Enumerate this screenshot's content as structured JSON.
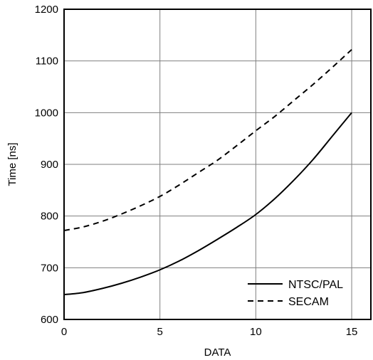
{
  "chart_data": {
    "type": "line",
    "xlabel": "DATA",
    "ylabel": "Time [ns]",
    "xlim": [
      0,
      16
    ],
    "ylim": [
      600,
      1200
    ],
    "xticks": [
      0,
      5,
      10,
      15
    ],
    "yticks": [
      600,
      700,
      800,
      900,
      1000,
      1100,
      1200
    ],
    "grid": true,
    "legend_position": "bottom-right",
    "x": [
      0,
      1,
      2,
      3,
      4,
      5,
      6,
      7,
      8,
      9,
      10,
      11,
      12,
      13,
      14,
      15
    ],
    "series": [
      {
        "name": "NTSC/PAL",
        "line_style": "solid",
        "color": "#000000",
        "values": [
          648,
          652,
          660,
          670,
          682,
          696,
          713,
          733,
          755,
          778,
          803,
          834,
          870,
          910,
          955,
          1000
        ]
      },
      {
        "name": "SECAM",
        "line_style": "dashed",
        "color": "#000000",
        "values": [
          772,
          779,
          790,
          804,
          820,
          838,
          860,
          884,
          908,
          936,
          965,
          993,
          1024,
          1055,
          1088,
          1122
        ]
      }
    ]
  }
}
